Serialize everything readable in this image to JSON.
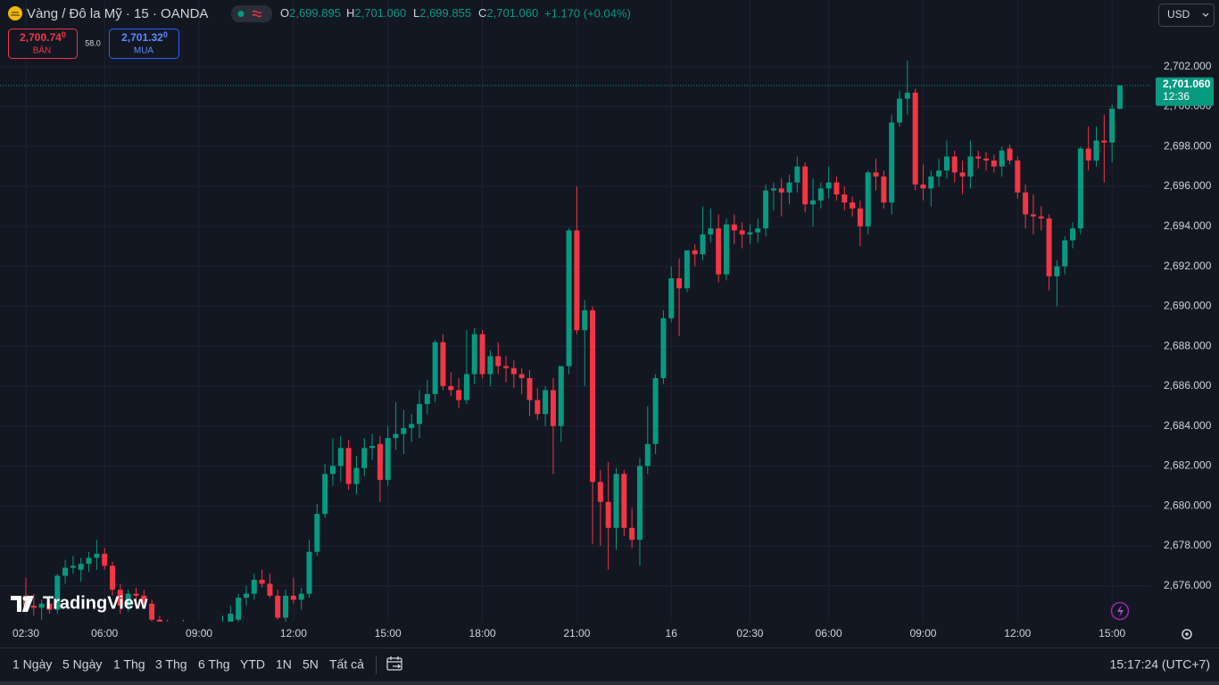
{
  "header": {
    "symbol": "Vàng / Đô la Mỹ · 15 · OANDA",
    "ohlc": [
      {
        "key": "O",
        "value": "2,699.895"
      },
      {
        "key": "H",
        "value": "2,701.060"
      },
      {
        "key": "L",
        "value": "2,699.855"
      },
      {
        "key": "C",
        "value": "2,701.060"
      }
    ],
    "change": "+1.170 (+0.04%)",
    "currency": "USD"
  },
  "quote": {
    "sell": {
      "price": "2,700.74",
      "pip": "0",
      "label": "BÁN"
    },
    "spread": "58.0",
    "buy": {
      "price": "2,701.32",
      "pip": "0",
      "label": "MUA"
    }
  },
  "logo": "TradingView",
  "toolbar": {
    "ranges": [
      "1 Ngày",
      "5 Ngày",
      "1 Thg",
      "3 Thg",
      "6 Thg",
      "YTD",
      "1N",
      "5N",
      "Tất cả"
    ],
    "clock": "15:17:24 (UTC+7)"
  },
  "chart_data": {
    "type": "candlestick",
    "up_color": "#089981",
    "down_color": "#f23645",
    "grid": true,
    "ylim": [
      2674.2,
      2704.0
    ],
    "yticks": [
      {
        "value": 2676,
        "label": "2,676.000"
      },
      {
        "value": 2678,
        "label": "2,678.000"
      },
      {
        "value": 2680,
        "label": "2,680.000"
      },
      {
        "value": 2682,
        "label": "2,682.000"
      },
      {
        "value": 2684,
        "label": "2,684.000"
      },
      {
        "value": 2686,
        "label": "2,686.000"
      },
      {
        "value": 2688,
        "label": "2,688.000"
      },
      {
        "value": 2690,
        "label": "2,690.000"
      },
      {
        "value": 2692,
        "label": "2,692.000"
      },
      {
        "value": 2694,
        "label": "2,694.000"
      },
      {
        "value": 2696,
        "label": "2,696.000"
      },
      {
        "value": 2698,
        "label": "2,698.000"
      },
      {
        "value": 2700,
        "label": "2,700.000"
      },
      {
        "value": 2702,
        "label": "2,702.000"
      }
    ],
    "last_price": {
      "value": 2701.06,
      "label": "2,701.060"
    },
    "countdown": "12:36",
    "categories": [
      "02:30",
      null,
      null,
      null,
      null,
      null,
      null,
      null,
      null,
      null,
      "06:00",
      null,
      null,
      null,
      null,
      null,
      null,
      null,
      null,
      null,
      null,
      null,
      "09:00",
      null,
      null,
      null,
      null,
      null,
      null,
      null,
      null,
      null,
      null,
      null,
      "12:00",
      null,
      null,
      null,
      null,
      null,
      null,
      null,
      null,
      null,
      null,
      null,
      "15:00",
      null,
      null,
      null,
      null,
      null,
      null,
      null,
      null,
      null,
      null,
      null,
      "18:00",
      null,
      null,
      null,
      null,
      null,
      null,
      null,
      null,
      null,
      null,
      null,
      "21:00",
      null,
      null,
      null,
      null,
      null,
      null,
      null,
      null,
      null,
      null,
      null,
      "16",
      null,
      null,
      null,
      null,
      null,
      null,
      null,
      null,
      null,
      "02:30",
      null,
      null,
      null,
      null,
      null,
      null,
      null,
      null,
      null,
      "06:00",
      null,
      null,
      null,
      null,
      null,
      null,
      null,
      null,
      null,
      null,
      null,
      "09:00",
      null,
      null,
      null,
      null,
      null,
      null,
      null,
      null,
      null,
      null,
      null,
      "12:00",
      null,
      null,
      null,
      null,
      null,
      null,
      null,
      null,
      null,
      null,
      null,
      "15:00",
      null
    ],
    "ohlc": [
      [
        2675.5,
        2676.4,
        2674.8,
        2675.0
      ],
      [
        2675.0,
        2675.6,
        2674.5,
        2674.9
      ],
      [
        2674.9,
        2675.3,
        2674.3,
        2675.1
      ],
      [
        2675.1,
        2675.5,
        2674.6,
        2674.8
      ],
      [
        2674.8,
        2676.6,
        2674.6,
        2676.5
      ],
      [
        2676.5,
        2677.3,
        2676.1,
        2676.9
      ],
      [
        2676.9,
        2677.5,
        2676.6,
        2677.0
      ],
      [
        2676.8,
        2677.4,
        2676.2,
        2677.1
      ],
      [
        2677.1,
        2677.7,
        2676.7,
        2677.4
      ],
      [
        2677.4,
        2678.3,
        2676.8,
        2677.6
      ],
      [
        2677.6,
        2677.9,
        2676.8,
        2677.0
      ],
      [
        2677.0,
        2677.2,
        2675.5,
        2675.8
      ],
      [
        2675.8,
        2676.1,
        2674.6,
        2675.0
      ],
      [
        2675.0,
        2675.8,
        2674.7,
        2675.6
      ],
      [
        2675.6,
        2675.9,
        2675.2,
        2675.5
      ],
      [
        2675.5,
        2675.8,
        2674.9,
        2675.1
      ],
      [
        2675.1,
        2675.3,
        2674.0,
        2674.3
      ],
      [
        2674.3,
        2674.5,
        2673.6,
        2673.9
      ],
      [
        2673.9,
        2674.3,
        2673.4,
        2673.7
      ],
      [
        2673.7,
        2674.2,
        2673.2,
        2673.5
      ],
      [
        2673.5,
        2674.3,
        2673.3,
        2674.0
      ],
      [
        2674.0,
        2674.2,
        2673.4,
        2673.6
      ],
      [
        2673.6,
        2673.9,
        2673.0,
        2673.3
      ],
      [
        2673.3,
        2673.8,
        2672.9,
        2673.5
      ],
      [
        2673.5,
        2674.0,
        2673.2,
        2673.8
      ],
      [
        2673.8,
        2674.5,
        2673.5,
        2674.2
      ],
      [
        2674.2,
        2675.0,
        2674.0,
        2674.6
      ],
      [
        2674.3,
        2675.6,
        2674.0,
        2675.4
      ],
      [
        2675.4,
        2676.0,
        2675.0,
        2675.6
      ],
      [
        2675.6,
        2676.6,
        2675.3,
        2676.3
      ],
      [
        2676.3,
        2676.8,
        2675.9,
        2676.1
      ],
      [
        2676.1,
        2676.6,
        2675.4,
        2675.5
      ],
      [
        2675.5,
        2675.8,
        2674.3,
        2674.4
      ],
      [
        2674.4,
        2675.8,
        2674.2,
        2675.5
      ],
      [
        2675.5,
        2676.4,
        2675.1,
        2675.3
      ],
      [
        2675.3,
        2675.9,
        2674.8,
        2675.6
      ],
      [
        2675.6,
        2678.3,
        2675.4,
        2677.7
      ],
      [
        2677.7,
        2680.1,
        2677.5,
        2679.6
      ],
      [
        2679.6,
        2682.1,
        2679.4,
        2681.6
      ],
      [
        2681.6,
        2683.4,
        2681.0,
        2682.0
      ],
      [
        2682.0,
        2683.5,
        2681.2,
        2682.9
      ],
      [
        2682.9,
        2683.3,
        2680.8,
        2681.1
      ],
      [
        2681.1,
        2682.5,
        2680.6,
        2681.9
      ],
      [
        2681.9,
        2683.4,
        2681.5,
        2682.9
      ],
      [
        2682.9,
        2683.6,
        2682.3,
        2683.0
      ],
      [
        2683.1,
        2683.5,
        2680.2,
        2681.3
      ],
      [
        2681.3,
        2684.0,
        2681.0,
        2683.4
      ],
      [
        2683.4,
        2685.2,
        2682.8,
        2683.6
      ],
      [
        2683.6,
        2684.8,
        2682.6,
        2683.9
      ],
      [
        2683.9,
        2684.6,
        2683.2,
        2684.1
      ],
      [
        2684.1,
        2685.8,
        2683.4,
        2685.1
      ],
      [
        2685.1,
        2686.3,
        2684.6,
        2685.6
      ],
      [
        2685.6,
        2688.3,
        2685.2,
        2688.2
      ],
      [
        2688.2,
        2688.6,
        2685.8,
        2686.0
      ],
      [
        2686.0,
        2686.7,
        2685.5,
        2685.8
      ],
      [
        2685.8,
        2686.4,
        2684.9,
        2685.3
      ],
      [
        2685.3,
        2688.8,
        2685.1,
        2686.6
      ],
      [
        2686.6,
        2688.9,
        2686.1,
        2688.6
      ],
      [
        2688.6,
        2688.8,
        2686.4,
        2686.6
      ],
      [
        2686.6,
        2687.8,
        2686.0,
        2687.5
      ],
      [
        2687.5,
        2688.2,
        2686.6,
        2687.0
      ],
      [
        2687.0,
        2687.5,
        2686.2,
        2686.9
      ],
      [
        2686.9,
        2687.3,
        2685.9,
        2686.6
      ],
      [
        2686.6,
        2686.9,
        2685.6,
        2686.4
      ],
      [
        2686.4,
        2686.8,
        2684.5,
        2685.3
      ],
      [
        2685.3,
        2685.9,
        2684.3,
        2684.6
      ],
      [
        2684.6,
        2686.0,
        2684.0,
        2685.8
      ],
      [
        2685.8,
        2686.4,
        2681.6,
        2684.0
      ],
      [
        2684.0,
        2687.0,
        2683.2,
        2687.0
      ],
      [
        2687.0,
        2693.9,
        2686.6,
        2693.8
      ],
      [
        2693.8,
        2696.0,
        2688.6,
        2688.8
      ],
      [
        2688.8,
        2690.3,
        2686.0,
        2689.8
      ],
      [
        2689.8,
        2690.0,
        2678.1,
        2681.2
      ],
      [
        2681.2,
        2681.8,
        2678.0,
        2680.2
      ],
      [
        2680.2,
        2682.2,
        2676.8,
        2678.9
      ],
      [
        2678.9,
        2681.9,
        2677.8,
        2681.6
      ],
      [
        2681.6,
        2681.8,
        2678.5,
        2678.9
      ],
      [
        2678.9,
        2679.9,
        2677.9,
        2678.3
      ],
      [
        2678.3,
        2682.4,
        2677.0,
        2682.0
      ],
      [
        2682.0,
        2685.0,
        2681.6,
        2683.1
      ],
      [
        2683.1,
        2686.6,
        2682.6,
        2686.4
      ],
      [
        2686.4,
        2689.8,
        2686.1,
        2689.4
      ],
      [
        2689.4,
        2692.0,
        2689.2,
        2691.4
      ],
      [
        2691.4,
        2692.4,
        2688.5,
        2690.9
      ],
      [
        2690.9,
        2692.8,
        2690.7,
        2692.8
      ],
      [
        2692.8,
        2693.1,
        2692.0,
        2692.6
      ],
      [
        2692.6,
        2695.0,
        2692.3,
        2693.6
      ],
      [
        2693.6,
        2694.9,
        2693.2,
        2693.9
      ],
      [
        2693.9,
        2694.6,
        2691.2,
        2691.6
      ],
      [
        2691.6,
        2694.4,
        2691.3,
        2694.1
      ],
      [
        2694.1,
        2694.6,
        2693.1,
        2693.8
      ],
      [
        2693.8,
        2694.2,
        2692.9,
        2693.6
      ],
      [
        2693.6,
        2694.1,
        2693.1,
        2693.7
      ],
      [
        2693.7,
        2694.4,
        2693.2,
        2693.9
      ],
      [
        2693.9,
        2696.1,
        2693.5,
        2695.8
      ],
      [
        2695.8,
        2696.2,
        2694.8,
        2695.9
      ],
      [
        2695.9,
        2696.4,
        2694.5,
        2695.7
      ],
      [
        2695.7,
        2696.6,
        2695.1,
        2696.2
      ],
      [
        2696.2,
        2697.5,
        2695.7,
        2697.0
      ],
      [
        2697.0,
        2697.2,
        2694.7,
        2695.1
      ],
      [
        2695.1,
        2696.4,
        2694.0,
        2695.3
      ],
      [
        2695.3,
        2696.2,
        2694.9,
        2695.9
      ],
      [
        2695.9,
        2697.0,
        2695.4,
        2696.2
      ],
      [
        2696.2,
        2696.5,
        2695.3,
        2695.6
      ],
      [
        2695.6,
        2696.0,
        2694.8,
        2695.2
      ],
      [
        2695.2,
        2695.5,
        2694.5,
        2694.9
      ],
      [
        2694.9,
        2695.3,
        2693.0,
        2694.0
      ],
      [
        2694.0,
        2696.8,
        2693.6,
        2696.7
      ],
      [
        2696.7,
        2697.4,
        2695.8,
        2696.5
      ],
      [
        2696.5,
        2696.8,
        2694.9,
        2695.2
      ],
      [
        2695.2,
        2699.6,
        2694.6,
        2699.2
      ],
      [
        2699.2,
        2700.8,
        2699.0,
        2700.4
      ],
      [
        2700.4,
        2702.3,
        2699.6,
        2700.7
      ],
      [
        2700.7,
        2700.9,
        2695.8,
        2696.1
      ],
      [
        2696.1,
        2697.1,
        2695.3,
        2695.9
      ],
      [
        2695.9,
        2696.8,
        2695.0,
        2696.5
      ],
      [
        2696.5,
        2697.4,
        2696.0,
        2696.8
      ],
      [
        2696.8,
        2698.3,
        2696.4,
        2697.5
      ],
      [
        2697.5,
        2697.8,
        2696.2,
        2696.7
      ],
      [
        2696.7,
        2697.3,
        2695.6,
        2696.5
      ],
      [
        2696.5,
        2698.3,
        2695.9,
        2697.5
      ],
      [
        2697.5,
        2697.8,
        2696.9,
        2697.4
      ],
      [
        2697.4,
        2697.7,
        2696.8,
        2697.3
      ],
      [
        2697.3,
        2697.6,
        2696.7,
        2697.0
      ],
      [
        2697.0,
        2698.0,
        2696.5,
        2697.8
      ],
      [
        2697.9,
        2698.1,
        2697.1,
        2697.3
      ],
      [
        2697.3,
        2697.5,
        2695.4,
        2695.7
      ],
      [
        2695.7,
        2696.1,
        2693.9,
        2694.6
      ],
      [
        2694.6,
        2695.6,
        2693.6,
        2694.5
      ],
      [
        2694.5,
        2695.0,
        2693.8,
        2694.4
      ],
      [
        2694.4,
        2694.6,
        2690.8,
        2691.5
      ],
      [
        2691.5,
        2692.3,
        2690.0,
        2692.0
      ],
      [
        2692.0,
        2693.5,
        2691.6,
        2693.3
      ],
      [
        2693.3,
        2694.2,
        2692.9,
        2693.9
      ],
      [
        2693.9,
        2698.0,
        2693.6,
        2697.9
      ],
      [
        2697.9,
        2699.0,
        2696.8,
        2697.3
      ],
      [
        2697.3,
        2699.0,
        2697.0,
        2698.3
      ],
      [
        2698.3,
        2699.6,
        2696.2,
        2698.2
      ],
      [
        2698.2,
        2700.1,
        2697.2,
        2699.9
      ],
      [
        2699.895,
        2701.06,
        2699.855,
        2701.06
      ]
    ]
  }
}
